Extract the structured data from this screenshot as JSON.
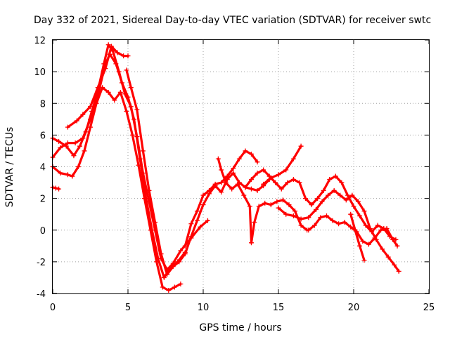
{
  "chart_data": {
    "type": "scatter",
    "title": "Day 332 of 2021, Sidereal Day-to-day VTEC variation (SDTVAR) for receiver swtc",
    "xlabel": "GPS time / hours",
    "ylabel": "SDTVAR / TECUs",
    "xlim": [
      0,
      25
    ],
    "ylim": [
      -4,
      12
    ],
    "xticks": [
      0,
      5,
      10,
      15,
      20,
      25
    ],
    "yticks": [
      -4,
      -2,
      0,
      2,
      4,
      6,
      8,
      10,
      12
    ],
    "grid": true,
    "marker": "+",
    "color": "#ff0000",
    "series": [
      {
        "name": "track-1",
        "points": [
          [
            0.0,
            4.6
          ],
          [
            0.5,
            5.2
          ],
          [
            1.0,
            5.5
          ],
          [
            1.5,
            5.5
          ],
          [
            2.0,
            5.8
          ],
          [
            2.5,
            7.0
          ],
          [
            3.0,
            8.5
          ],
          [
            3.5,
            10.5
          ],
          [
            3.8,
            11.1
          ],
          [
            4.2,
            10.5
          ],
          [
            4.6,
            9.3
          ],
          [
            5.0,
            8.4
          ],
          [
            5.4,
            7.0
          ],
          [
            5.8,
            4.5
          ],
          [
            6.2,
            2.0
          ],
          [
            6.6,
            0.0
          ],
          [
            7.0,
            -1.8
          ],
          [
            7.4,
            -3.0
          ],
          [
            7.8,
            -2.4
          ],
          [
            8.3,
            -2.0
          ],
          [
            8.8,
            -1.4
          ]
        ]
      },
      {
        "name": "track-2",
        "points": [
          [
            0.0,
            5.8
          ],
          [
            0.4,
            5.6
          ],
          [
            0.9,
            5.3
          ],
          [
            1.4,
            4.7
          ],
          [
            1.8,
            5.3
          ],
          [
            2.2,
            6.2
          ],
          [
            2.6,
            7.5
          ],
          [
            3.0,
            8.8
          ],
          [
            3.4,
            10.5
          ],
          [
            3.7,
            11.7
          ],
          [
            4.0,
            11.3
          ],
          [
            4.4,
            10.0
          ],
          [
            4.8,
            8.6
          ],
          [
            5.2,
            7.8
          ],
          [
            5.6,
            5.9
          ],
          [
            6.0,
            3.6
          ],
          [
            6.4,
            1.8
          ],
          [
            6.8,
            0.0
          ],
          [
            7.2,
            -1.8
          ],
          [
            7.6,
            -2.5
          ],
          [
            8.0,
            -2.1
          ],
          [
            8.5,
            -1.3
          ],
          [
            9.2,
            -0.5
          ],
          [
            9.8,
            0.2
          ],
          [
            10.3,
            0.6
          ]
        ]
      },
      {
        "name": "track-3",
        "points": [
          [
            0.0,
            4.0
          ],
          [
            0.5,
            3.6
          ],
          [
            1.0,
            3.5
          ],
          [
            1.3,
            3.4
          ],
          [
            1.7,
            4.0
          ],
          [
            2.1,
            5.0
          ],
          [
            2.5,
            6.5
          ],
          [
            2.9,
            8.0
          ],
          [
            3.3,
            9.0
          ],
          [
            3.7,
            8.7
          ],
          [
            4.1,
            8.2
          ],
          [
            4.5,
            8.7
          ],
          [
            4.9,
            7.5
          ],
          [
            5.3,
            6.0
          ],
          [
            5.7,
            4.1
          ],
          [
            6.1,
            2.0
          ],
          [
            6.5,
            0.0
          ],
          [
            6.9,
            -2.0
          ],
          [
            7.3,
            -3.6
          ],
          [
            7.7,
            -3.8
          ],
          [
            8.1,
            -3.6
          ],
          [
            8.5,
            -3.4
          ]
        ]
      },
      {
        "name": "track-4",
        "points": [
          [
            1.0,
            6.5
          ],
          [
            1.6,
            6.9
          ],
          [
            2.0,
            7.3
          ],
          [
            2.5,
            7.8
          ],
          [
            3.0,
            9.0
          ],
          [
            3.5,
            10.2
          ],
          [
            3.9,
            11.6
          ],
          [
            4.3,
            11.2
          ],
          [
            4.7,
            11.0
          ],
          [
            5.0,
            11.0
          ]
        ]
      },
      {
        "name": "track-5",
        "points": [
          [
            4.9,
            10.1
          ],
          [
            5.2,
            9.0
          ],
          [
            5.6,
            7.6
          ],
          [
            6.0,
            5.0
          ],
          [
            6.4,
            2.5
          ],
          [
            6.8,
            0.5
          ],
          [
            7.2,
            -1.5
          ],
          [
            7.6,
            -2.8
          ],
          [
            8.0,
            -2.3
          ],
          [
            8.4,
            -2.0
          ],
          [
            8.8,
            -1.5
          ],
          [
            9.2,
            -0.4
          ],
          [
            9.6,
            0.6
          ],
          [
            10.0,
            1.6
          ],
          [
            10.4,
            2.3
          ],
          [
            10.8,
            2.8
          ],
          [
            11.2,
            2.4
          ],
          [
            11.6,
            3.2
          ],
          [
            12.0,
            3.6
          ],
          [
            12.4,
            3.0
          ],
          [
            12.8,
            2.7
          ],
          [
            13.2,
            2.6
          ],
          [
            13.6,
            2.5
          ],
          [
            14.0,
            2.8
          ],
          [
            14.4,
            3.2
          ]
        ]
      },
      {
        "name": "track-6",
        "points": [
          [
            8.8,
            -1.0
          ],
          [
            9.2,
            0.4
          ],
          [
            9.6,
            1.2
          ],
          [
            10.0,
            2.2
          ],
          [
            10.4,
            2.5
          ],
          [
            10.8,
            2.9
          ],
          [
            11.2,
            3.0
          ],
          [
            11.6,
            3.4
          ],
          [
            12.0,
            3.9
          ],
          [
            12.4,
            4.5
          ],
          [
            12.8,
            5.0
          ],
          [
            13.2,
            4.8
          ],
          [
            13.6,
            4.3
          ]
        ]
      },
      {
        "name": "track-7",
        "points": [
          [
            11.0,
            4.5
          ],
          [
            11.2,
            3.8
          ],
          [
            11.5,
            3.0
          ],
          [
            11.9,
            2.6
          ],
          [
            12.3,
            2.9
          ],
          [
            12.7,
            2.2
          ],
          [
            13.1,
            1.5
          ],
          [
            13.2,
            -0.8
          ],
          [
            13.4,
            0.5
          ],
          [
            13.7,
            1.5
          ],
          [
            14.1,
            1.7
          ],
          [
            14.5,
            1.6
          ],
          [
            14.9,
            1.8
          ],
          [
            15.3,
            1.9
          ],
          [
            15.7,
            1.6
          ],
          [
            16.1,
            1.2
          ],
          [
            16.5,
            0.3
          ],
          [
            16.9,
            0.0
          ]
        ]
      },
      {
        "name": "track-8",
        "points": [
          [
            12.8,
            2.7
          ],
          [
            13.2,
            3.2
          ],
          [
            13.6,
            3.6
          ],
          [
            14.0,
            3.8
          ],
          [
            14.4,
            3.4
          ],
          [
            14.8,
            3.0
          ],
          [
            15.2,
            2.6
          ],
          [
            15.6,
            3.0
          ],
          [
            16.0,
            3.2
          ],
          [
            16.4,
            3.0
          ],
          [
            16.8,
            2.0
          ],
          [
            17.2,
            1.6
          ],
          [
            17.6,
            2.0
          ],
          [
            18.0,
            2.5
          ],
          [
            18.4,
            3.2
          ],
          [
            18.8,
            3.4
          ],
          [
            19.2,
            3.0
          ],
          [
            19.6,
            2.2
          ],
          [
            20.0,
            1.5
          ],
          [
            20.4,
            0.9
          ],
          [
            20.8,
            0.3
          ],
          [
            21.2,
            -0.1
          ],
          [
            21.6,
            0.3
          ],
          [
            22.0,
            0.1
          ],
          [
            22.4,
            -0.4
          ],
          [
            22.8,
            -0.6
          ]
        ]
      },
      {
        "name": "track-9",
        "points": [
          [
            14.0,
            2.9
          ],
          [
            14.5,
            3.3
          ],
          [
            15.0,
            3.5
          ],
          [
            15.5,
            3.8
          ],
          [
            16.0,
            4.5
          ],
          [
            16.5,
            5.3
          ]
        ]
      },
      {
        "name": "track-10",
        "points": [
          [
            15.0,
            1.4
          ],
          [
            15.5,
            1.0
          ],
          [
            16.0,
            0.9
          ],
          [
            16.5,
            0.7
          ],
          [
            17.0,
            0.8
          ],
          [
            17.5,
            1.3
          ],
          [
            17.9,
            1.8
          ],
          [
            18.3,
            2.2
          ],
          [
            18.7,
            2.5
          ],
          [
            19.1,
            2.2
          ],
          [
            19.5,
            1.9
          ],
          [
            19.9,
            2.2
          ],
          [
            20.3,
            1.8
          ],
          [
            20.7,
            1.2
          ],
          [
            21.1,
            0.1
          ],
          [
            21.5,
            -0.6
          ],
          [
            21.9,
            -1.2
          ],
          [
            22.3,
            -1.7
          ],
          [
            22.7,
            -2.2
          ],
          [
            23.0,
            -2.6
          ]
        ]
      },
      {
        "name": "track-11",
        "points": [
          [
            17.0,
            0.0
          ],
          [
            17.4,
            0.3
          ],
          [
            17.8,
            0.8
          ],
          [
            18.2,
            0.9
          ],
          [
            18.6,
            0.6
          ],
          [
            19.0,
            0.4
          ],
          [
            19.4,
            0.5
          ],
          [
            19.8,
            0.2
          ],
          [
            20.2,
            -0.1
          ],
          [
            20.6,
            -0.7
          ],
          [
            21.0,
            -0.9
          ],
          [
            21.4,
            -0.5
          ],
          [
            21.8,
            0.0
          ],
          [
            22.2,
            0.1
          ],
          [
            22.6,
            -0.6
          ],
          [
            22.9,
            -1.0
          ]
        ]
      },
      {
        "name": "track-12",
        "points": [
          [
            19.8,
            1.0
          ],
          [
            20.1,
            0.0
          ],
          [
            20.4,
            -1.0
          ],
          [
            20.7,
            -1.9
          ]
        ]
      },
      {
        "name": "track-13",
        "points": [
          [
            0.0,
            2.7
          ],
          [
            0.2,
            2.65
          ],
          [
            0.4,
            2.6
          ]
        ]
      }
    ]
  }
}
